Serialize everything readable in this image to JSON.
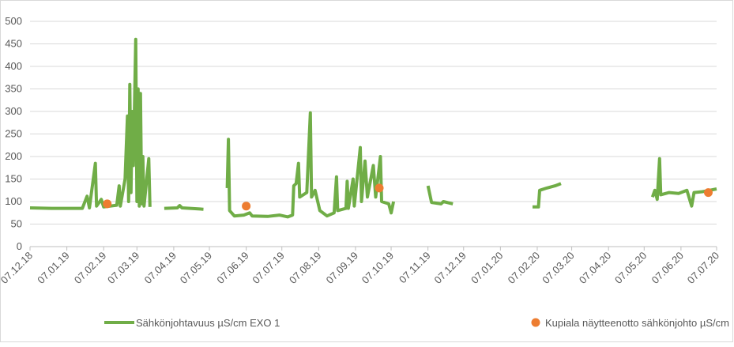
{
  "chart_data": {
    "type": "line",
    "series": [
      {
        "name": "Sähkönjohtavuus µS/cm EXO 1",
        "type": "line",
        "color": "#70ad47",
        "x": [
          "2018-12-07",
          "2018-12-25",
          "2019-01-20",
          "2019-01-24",
          "2019-01-26",
          "2019-01-31",
          "2019-02-01",
          "2019-02-05",
          "2019-02-07",
          "2019-02-18",
          "2019-02-20",
          "2019-02-21",
          "2019-02-25",
          "2019-02-27",
          "2019-02-28",
          "2019-03-01",
          "2019-03-02",
          "2019-03-03",
          "2019-03-04",
          "2019-03-06",
          "2019-03-07",
          "2019-03-08",
          "2019-03-09",
          "2019-03-10",
          "2019-03-11",
          "2019-03-12",
          "2019-03-13",
          "2019-03-17",
          "2019-03-18",
          "2019-03-24",
          "2019-03-30",
          "2019-04-10",
          "2019-04-12",
          "2019-04-14",
          "2019-05-02",
          "2019-05-12",
          "2019-05-22",
          "2019-05-23",
          "2019-05-24",
          "2019-05-28",
          "2019-06-05",
          "2019-06-10",
          "2019-06-12",
          "2019-06-25",
          "2019-07-05",
          "2019-07-12",
          "2019-07-16",
          "2019-07-17",
          "2019-07-19",
          "2019-07-21",
          "2019-07-22",
          "2019-07-28",
          "2019-07-31",
          "2019-08-01",
          "2019-08-04",
          "2019-08-08",
          "2019-08-14",
          "2019-08-20",
          "2019-08-22",
          "2019-08-23",
          "2019-08-30",
          "2019-08-31",
          "2019-09-01",
          "2019-09-05",
          "2019-09-06",
          "2019-09-11",
          "2019-09-12",
          "2019-09-15",
          "2019-09-17",
          "2019-09-22",
          "2019-09-24",
          "2019-09-28",
          "2019-09-29",
          "2019-10-05",
          "2019-10-07",
          "2019-10-09",
          "2019-10-20",
          "2019-11-07",
          "2019-11-10",
          "2019-11-18",
          "2019-11-20",
          "2019-11-28",
          "2019-12-20",
          "2020-02-03",
          "2020-02-08",
          "2020-02-09",
          "2020-02-15",
          "2020-02-22",
          "2020-02-27",
          "2020-03-20",
          "2020-05-14",
          "2020-05-16",
          "2020-05-18",
          "2020-05-20",
          "2020-05-21",
          "2020-05-28",
          "2020-06-05",
          "2020-06-12",
          "2020-06-16",
          "2020-06-18",
          "2020-06-25",
          "2020-07-01",
          "2020-07-07"
        ],
        "values": [
          86,
          85,
          85,
          112,
          86,
          185,
          90,
          105,
          88,
          92,
          135,
          90,
          150,
          290,
          100,
          360,
          120,
          300,
          180,
          460,
          100,
          350,
          90,
          340,
          95,
          200,
          90,
          195,
          88,
          null,
          85,
          86,
          91,
          86,
          83,
          null,
          130,
          238,
          80,
          68,
          70,
          75,
          68,
          67,
          70,
          66,
          70,
          135,
          140,
          185,
          110,
          120,
          297,
          110,
          125,
          80,
          68,
          75,
          155,
          80,
          85,
          145,
          85,
          150,
          90,
          220,
          100,
          190,
          110,
          180,
          110,
          200,
          100,
          95,
          75,
          100,
          null,
          135,
          98,
          95,
          100,
          95,
          null,
          88,
          88,
          125,
          130,
          135,
          140,
          null,
          110,
          125,
          105,
          195,
          115,
          120,
          118,
          125,
          90,
          120,
          122,
          125,
          128
        ]
      },
      {
        "name": "Kupiala näytteenotto sähkönjohto µS/cm",
        "type": "scatter",
        "color": "#ed7d31",
        "x": [
          "2019-02-10",
          "2019-06-07",
          "2019-09-27",
          "2020-06-30"
        ],
        "values": [
          95,
          90,
          130,
          120
        ]
      }
    ],
    "xlim": [
      "2018-12-07",
      "2020-07-07"
    ],
    "xticks": [
      {
        "value": "2018-12-07",
        "label": "07.12.18"
      },
      {
        "value": "2019-01-07",
        "label": "07.01.19"
      },
      {
        "value": "2019-02-07",
        "label": "07.02.19"
      },
      {
        "value": "2019-03-07",
        "label": "07.03.19"
      },
      {
        "value": "2019-04-07",
        "label": "07.04.19"
      },
      {
        "value": "2019-05-07",
        "label": "07.05.19"
      },
      {
        "value": "2019-06-07",
        "label": "07.06.19"
      },
      {
        "value": "2019-07-07",
        "label": "07.07.19"
      },
      {
        "value": "2019-08-07",
        "label": "07.08.19"
      },
      {
        "value": "2019-09-07",
        "label": "07.09.19"
      },
      {
        "value": "2019-10-07",
        "label": "07.10.19"
      },
      {
        "value": "2019-11-07",
        "label": "07.11.19"
      },
      {
        "value": "2019-12-07",
        "label": "07.12.19"
      },
      {
        "value": "2020-01-07",
        "label": "07.01.20"
      },
      {
        "value": "2020-02-07",
        "label": "07.02.20"
      },
      {
        "value": "2020-03-07",
        "label": "07.03.20"
      },
      {
        "value": "2020-04-07",
        "label": "07.04.20"
      },
      {
        "value": "2020-05-07",
        "label": "07.05.20"
      },
      {
        "value": "2020-06-07",
        "label": "07.06.20"
      },
      {
        "value": "2020-07-07",
        "label": "07.07.20"
      }
    ],
    "ylim": [
      0,
      500
    ],
    "yticks": [
      0,
      50,
      100,
      150,
      200,
      250,
      300,
      350,
      400,
      450,
      500
    ],
    "grid": true,
    "legend": "bottom"
  }
}
